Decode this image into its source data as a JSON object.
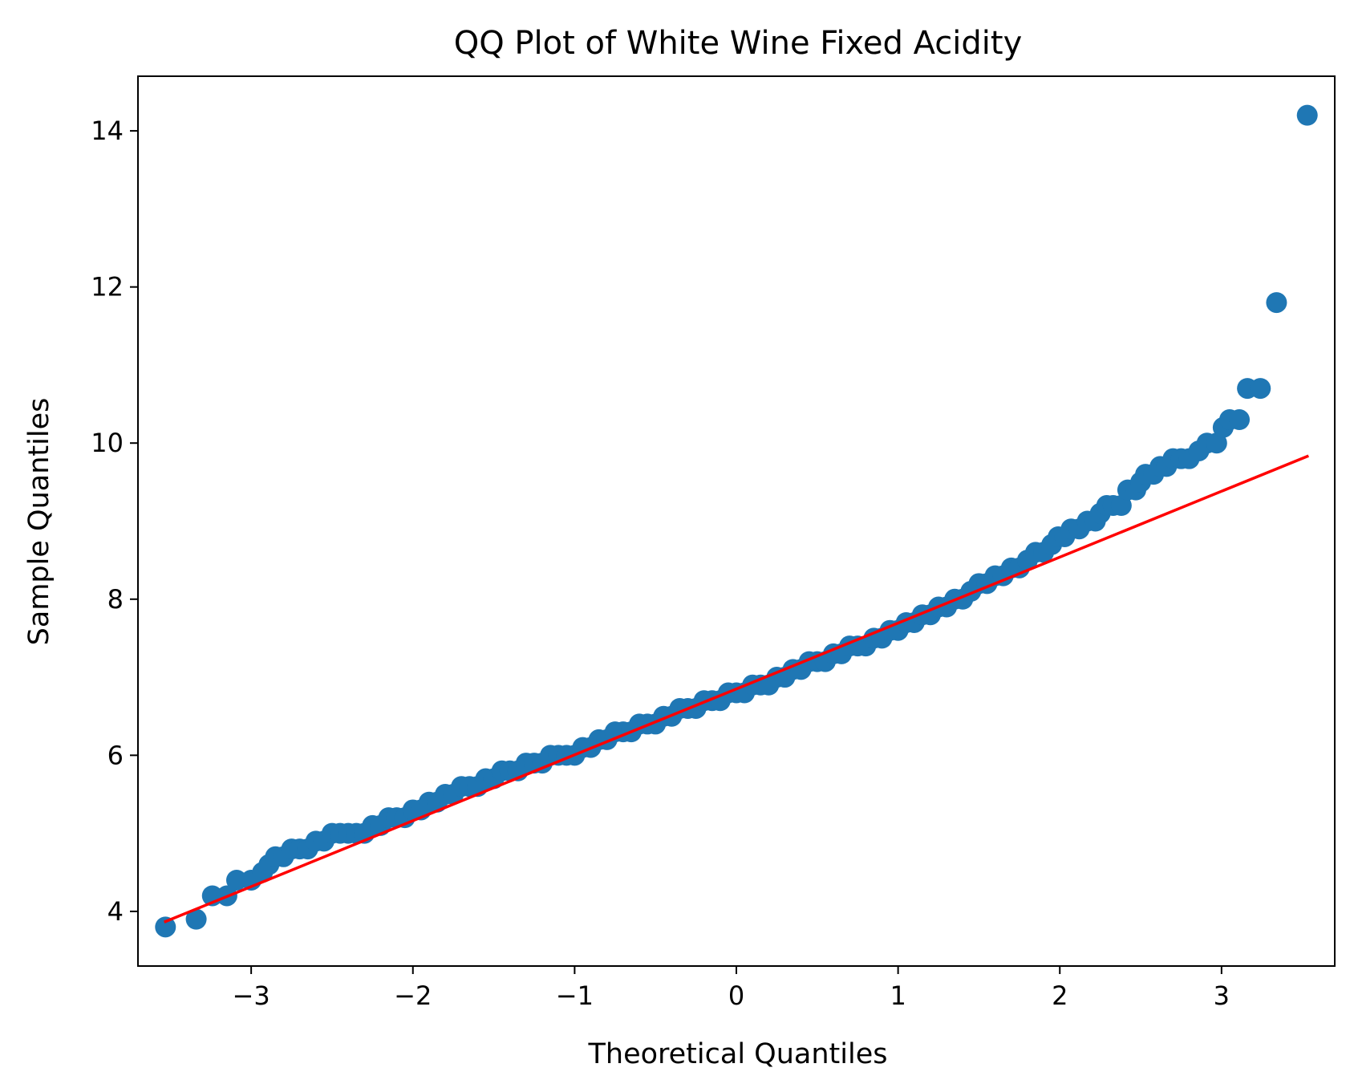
{
  "chart_data": {
    "type": "scatter",
    "title": "QQ Plot of White Wine Fixed Acidity",
    "xlabel": "Theoretical Quantiles",
    "ylabel": "Sample Quantiles",
    "xlim": [
      -3.7,
      3.7
    ],
    "ylim": [
      3.3,
      14.7
    ],
    "xticks": [
      -3,
      -2,
      -1,
      0,
      1,
      2,
      3
    ],
    "xtick_labels": [
      "−3",
      "−2",
      "−1",
      "0",
      "1",
      "2",
      "3"
    ],
    "yticks": [
      4,
      6,
      8,
      10,
      12,
      14
    ],
    "ytick_labels": [
      "4",
      "6",
      "8",
      "10",
      "12",
      "14"
    ],
    "grid": false,
    "legend": "none",
    "colors": {
      "points": "#1f77b4",
      "reference_line": "#ff0000"
    },
    "series": [
      {
        "type": "scatter",
        "points": [
          [
            -3.53,
            3.8
          ],
          [
            -3.34,
            3.9
          ],
          [
            -3.24,
            4.2
          ],
          [
            -3.15,
            4.2
          ],
          [
            -3.09,
            4.4
          ],
          [
            -3.0,
            4.4
          ],
          [
            -2.93,
            4.5
          ],
          [
            -2.89,
            4.6
          ],
          [
            -2.85,
            4.7
          ],
          [
            -2.8,
            4.7
          ],
          [
            -2.75,
            4.8
          ],
          [
            -2.7,
            4.8
          ],
          [
            -2.65,
            4.8
          ],
          [
            -2.6,
            4.9
          ],
          [
            -2.55,
            4.9
          ],
          [
            -2.5,
            5.0
          ],
          [
            -2.45,
            5.0
          ],
          [
            -2.4,
            5.0
          ],
          [
            -2.35,
            5.0
          ],
          [
            -2.3,
            5.0
          ],
          [
            -2.25,
            5.1
          ],
          [
            -2.2,
            5.1
          ],
          [
            -2.15,
            5.2
          ],
          [
            -2.1,
            5.2
          ],
          [
            -2.05,
            5.2
          ],
          [
            -2.0,
            5.3
          ],
          [
            -1.95,
            5.3
          ],
          [
            -1.9,
            5.4
          ],
          [
            -1.85,
            5.4
          ],
          [
            -1.8,
            5.5
          ],
          [
            -1.75,
            5.5
          ],
          [
            -1.7,
            5.6
          ],
          [
            -1.65,
            5.6
          ],
          [
            -1.6,
            5.6
          ],
          [
            -1.55,
            5.7
          ],
          [
            -1.5,
            5.7
          ],
          [
            -1.45,
            5.8
          ],
          [
            -1.4,
            5.8
          ],
          [
            -1.35,
            5.8
          ],
          [
            -1.3,
            5.9
          ],
          [
            -1.25,
            5.9
          ],
          [
            -1.2,
            5.9
          ],
          [
            -1.15,
            6.0
          ],
          [
            -1.1,
            6.0
          ],
          [
            -1.05,
            6.0
          ],
          [
            -1.0,
            6.0
          ],
          [
            -0.95,
            6.1
          ],
          [
            -0.9,
            6.1
          ],
          [
            -0.85,
            6.2
          ],
          [
            -0.8,
            6.2
          ],
          [
            -0.75,
            6.3
          ],
          [
            -0.7,
            6.3
          ],
          [
            -0.65,
            6.3
          ],
          [
            -0.6,
            6.4
          ],
          [
            -0.55,
            6.4
          ],
          [
            -0.5,
            6.4
          ],
          [
            -0.45,
            6.5
          ],
          [
            -0.4,
            6.5
          ],
          [
            -0.35,
            6.6
          ],
          [
            -0.3,
            6.6
          ],
          [
            -0.25,
            6.6
          ],
          [
            -0.2,
            6.7
          ],
          [
            -0.15,
            6.7
          ],
          [
            -0.1,
            6.7
          ],
          [
            -0.05,
            6.8
          ],
          [
            0.0,
            6.8
          ],
          [
            0.05,
            6.8
          ],
          [
            0.1,
            6.9
          ],
          [
            0.15,
            6.9
          ],
          [
            0.2,
            6.9
          ],
          [
            0.25,
            7.0
          ],
          [
            0.3,
            7.0
          ],
          [
            0.35,
            7.1
          ],
          [
            0.4,
            7.1
          ],
          [
            0.45,
            7.2
          ],
          [
            0.5,
            7.2
          ],
          [
            0.55,
            7.2
          ],
          [
            0.6,
            7.3
          ],
          [
            0.65,
            7.3
          ],
          [
            0.7,
            7.4
          ],
          [
            0.75,
            7.4
          ],
          [
            0.8,
            7.4
          ],
          [
            0.85,
            7.5
          ],
          [
            0.9,
            7.5
          ],
          [
            0.95,
            7.6
          ],
          [
            1.0,
            7.6
          ],
          [
            1.05,
            7.7
          ],
          [
            1.1,
            7.7
          ],
          [
            1.15,
            7.8
          ],
          [
            1.2,
            7.8
          ],
          [
            1.25,
            7.9
          ],
          [
            1.3,
            7.9
          ],
          [
            1.35,
            8.0
          ],
          [
            1.4,
            8.0
          ],
          [
            1.45,
            8.1
          ],
          [
            1.5,
            8.2
          ],
          [
            1.55,
            8.2
          ],
          [
            1.6,
            8.3
          ],
          [
            1.65,
            8.3
          ],
          [
            1.7,
            8.4
          ],
          [
            1.75,
            8.4
          ],
          [
            1.8,
            8.5
          ],
          [
            1.85,
            8.6
          ],
          [
            1.9,
            8.6
          ],
          [
            1.95,
            8.7
          ],
          [
            1.99,
            8.8
          ],
          [
            2.03,
            8.8
          ],
          [
            2.07,
            8.9
          ],
          [
            2.12,
            8.9
          ],
          [
            2.17,
            9.0
          ],
          [
            2.22,
            9.0
          ],
          [
            2.25,
            9.1
          ],
          [
            2.29,
            9.2
          ],
          [
            2.33,
            9.2
          ],
          [
            2.38,
            9.2
          ],
          [
            2.42,
            9.4
          ],
          [
            2.47,
            9.4
          ],
          [
            2.5,
            9.5
          ],
          [
            2.53,
            9.6
          ],
          [
            2.58,
            9.6
          ],
          [
            2.62,
            9.7
          ],
          [
            2.66,
            9.7
          ],
          [
            2.7,
            9.8
          ],
          [
            2.75,
            9.8
          ],
          [
            2.8,
            9.8
          ],
          [
            2.86,
            9.9
          ],
          [
            2.91,
            10.0
          ],
          [
            2.97,
            10.0
          ],
          [
            3.01,
            10.2
          ],
          [
            3.05,
            10.3
          ],
          [
            3.11,
            10.3
          ],
          [
            3.16,
            10.7
          ],
          [
            3.24,
            10.7
          ],
          [
            3.34,
            11.8
          ],
          [
            3.53,
            14.2
          ]
        ]
      },
      {
        "type": "line",
        "points": [
          [
            -3.53,
            3.87
          ],
          [
            3.53,
            9.83
          ]
        ]
      }
    ]
  }
}
